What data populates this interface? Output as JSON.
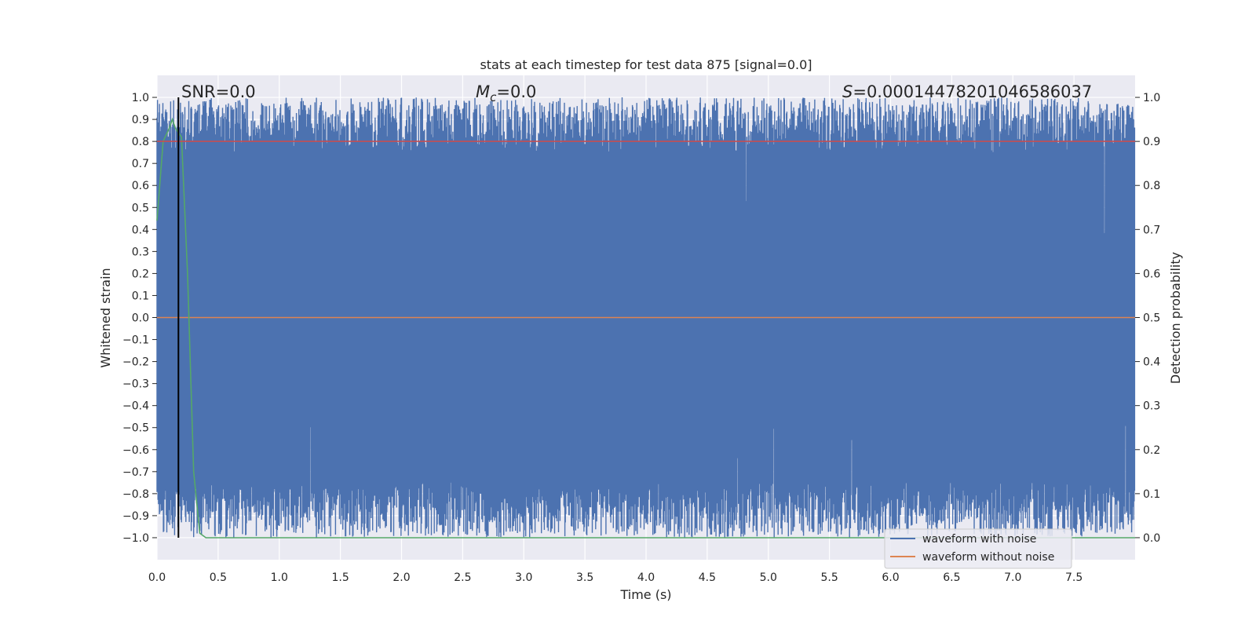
{
  "chart_data": {
    "type": "line",
    "title": "stats at each timestep for test data 875 [signal=0.0]",
    "xlabel": "Time (s)",
    "ylabel_left": "Whitened strain",
    "ylabel_right": "Detection probability",
    "xlim": [
      0.0,
      8.0
    ],
    "ylim_left": [
      -1.1,
      1.1
    ],
    "ylim_right": [
      -0.05,
      1.05
    ],
    "x_ticks": [
      "0.0",
      "0.5",
      "1.0",
      "1.5",
      "2.0",
      "2.5",
      "3.0",
      "3.5",
      "4.0",
      "4.5",
      "5.0",
      "5.5",
      "6.0",
      "6.5",
      "7.0",
      "7.5"
    ],
    "y_ticks_left": [
      "1.0",
      "0.9",
      "0.8",
      "0.7",
      "0.6",
      "0.5",
      "0.4",
      "0.3",
      "0.2",
      "0.1",
      "0.0",
      "−0.1",
      "−0.2",
      "−0.3",
      "−0.4",
      "−0.5",
      "−0.6",
      "−0.7",
      "−0.8",
      "−0.9",
      "−1.0"
    ],
    "y_ticks_right": [
      "1.0",
      "0.9",
      "0.8",
      "0.7",
      "0.6",
      "0.5",
      "0.4",
      "0.3",
      "0.2",
      "0.1",
      "0.0"
    ],
    "grid": true,
    "annotations": {
      "snr": "SNR=0.0",
      "mc_symbol": "M",
      "mc_sub": "c",
      "mc_value": "=0.0",
      "s_symbol": "S",
      "s_value": "=0.0001447820104658603​7"
    },
    "legend": {
      "placement": "lower-right",
      "entries": [
        "waveform with noise",
        "waveform without noise"
      ]
    },
    "series": [
      {
        "name": "waveform with noise",
        "color": "#4c72b0",
        "axis": "left",
        "description_range": [
          -1.0,
          1.0
        ]
      },
      {
        "name": "waveform without noise",
        "color": "#dd8452",
        "axis": "left",
        "x": [
          0.0,
          8.0
        ],
        "y": [
          0.0,
          0.0
        ]
      },
      {
        "name": "detection",
        "color": "#55a868",
        "axis": "right",
        "x": [
          0.0,
          0.05,
          0.1,
          0.125,
          0.15,
          0.2,
          0.25,
          0.3,
          0.35,
          0.4,
          8.0
        ],
        "y": [
          0.72,
          0.9,
          0.93,
          0.95,
          0.93,
          0.91,
          0.6,
          0.15,
          0.01,
          0.0,
          0.0
        ]
      },
      {
        "name": "threshold",
        "color": "#c44e52",
        "axis": "right",
        "x": [
          0.0,
          8.0
        ],
        "y": [
          0.9,
          0.9
        ]
      },
      {
        "name": "marker",
        "color": "#000000",
        "axis": "left",
        "x": [
          0.175,
          0.175
        ],
        "y": [
          -1.0,
          1.0
        ]
      }
    ],
    "colors": {
      "background": "#eaeaf2",
      "grid": "#ffffff"
    }
  }
}
